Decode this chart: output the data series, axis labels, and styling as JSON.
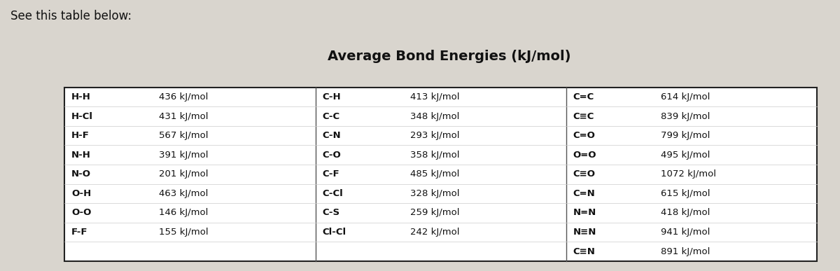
{
  "title": "Average Bond Energies (kJ/mol)",
  "header_text": "See this table below:",
  "col1_bonds": [
    "H-H",
    "H-Cl",
    "H-F",
    "N-H",
    "N-O",
    "O-H",
    "O-O",
    "F-F"
  ],
  "col1_values": [
    "436 kJ/mol",
    "431 kJ/mol",
    "567 kJ/mol",
    "391 kJ/mol",
    "201 kJ/mol",
    "463 kJ/mol",
    "146 kJ/mol",
    "155 kJ/mol"
  ],
  "col2_bonds": [
    "C-H",
    "C-C",
    "C-N",
    "C-O",
    "C-F",
    "C-Cl",
    "C-S",
    "Cl-Cl"
  ],
  "col2_values": [
    "413 kJ/mol",
    "348 kJ/mol",
    "293 kJ/mol",
    "358 kJ/mol",
    "485 kJ/mol",
    "328 kJ/mol",
    "259 kJ/mol",
    "242 kJ/mol"
  ],
  "col3_bonds": [
    "C=C",
    "C≡C",
    "C=O",
    "O=O",
    "C≡O",
    "C=N",
    "N=N",
    "N≡N",
    "C≡N"
  ],
  "col3_values": [
    "614 kJ/mol",
    "839 kJ/mol",
    "799 kJ/mol",
    "495 kJ/mol",
    "1072 kJ/mol",
    "615 kJ/mol",
    "418 kJ/mol",
    "941 kJ/mol",
    "891 kJ/mol"
  ],
  "bg_color": "#d9d5ce",
  "table_bg": "#ffffff",
  "border_color": "#222222",
  "divider_color": "#555555",
  "row_line_color": "#cccccc",
  "text_color": "#111111",
  "title_fontsize": 14,
  "cell_fontsize": 9.5,
  "header_fontsize": 12
}
